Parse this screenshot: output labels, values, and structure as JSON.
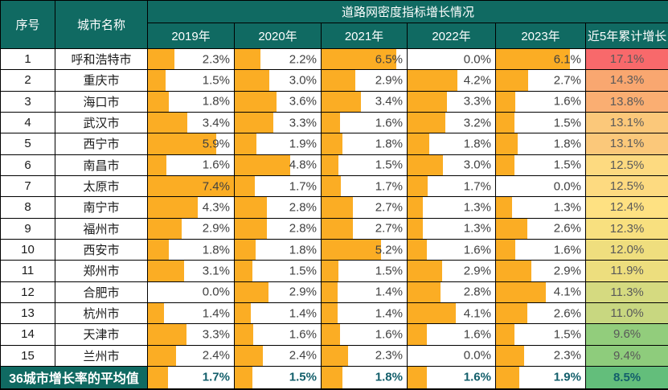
{
  "header": {
    "no": "序号",
    "city": "城市名称",
    "group": "道路网密度指标增长情况",
    "years": [
      "2019年",
      "2020年",
      "2021年",
      "2022年",
      "2023年"
    ],
    "cumulative": "近5年累计增长"
  },
  "colors": {
    "header_bg": "#106A62",
    "header_text": "#FFFFFF",
    "bar_fill": "#FBAD24",
    "value_text": "#404040",
    "cumulative_text": "#595959",
    "average_value_text": "#135F6B",
    "border": "#000000",
    "row_bg": "#FFFFFF"
  },
  "bar_scale_max": 7.4,
  "unit": "%",
  "chart_data": {
    "type": "table",
    "title": "道路网密度指标增长情况",
    "columns": [
      "序号",
      "城市名称",
      "2019年",
      "2020年",
      "2021年",
      "2022年",
      "2023年",
      "近5年累计增长"
    ],
    "value_format": "percent_one_decimal",
    "bar_scale_max": 7.4,
    "rows": [
      {
        "no": "1",
        "city": "呼和浩特市",
        "values": [
          2.3,
          2.2,
          6.5,
          0.0,
          6.1
        ],
        "cumulative": 17.1,
        "cumulative_bg": "#F8696B"
      },
      {
        "no": "2",
        "city": "重庆市",
        "values": [
          1.5,
          3.0,
          2.9,
          4.2,
          2.7
        ],
        "cumulative": 14.3,
        "cumulative_bg": "#F9A770"
      },
      {
        "no": "3",
        "city": "海口市",
        "values": [
          1.8,
          3.6,
          3.4,
          3.3,
          1.6
        ],
        "cumulative": 13.8,
        "cumulative_bg": "#FAAE72"
      },
      {
        "no": "4",
        "city": "武汉市",
        "values": [
          3.4,
          3.3,
          1.6,
          3.2,
          1.5
        ],
        "cumulative": 13.1,
        "cumulative_bg": "#FBC87A"
      },
      {
        "no": "5",
        "city": "西宁市",
        "values": [
          5.9,
          1.9,
          1.8,
          1.8,
          1.8
        ],
        "cumulative": 13.1,
        "cumulative_bg": "#FBC87A"
      },
      {
        "no": "6",
        "city": "南昌市",
        "values": [
          1.6,
          4.8,
          1.5,
          3.0,
          1.5
        ],
        "cumulative": 12.5,
        "cumulative_bg": "#FDDA80"
      },
      {
        "no": "7",
        "city": "太原市",
        "values": [
          7.4,
          1.7,
          1.7,
          1.7,
          0.0
        ],
        "cumulative": 12.5,
        "cumulative_bg": "#FDDA80"
      },
      {
        "no": "8",
        "city": "南宁市",
        "values": [
          4.3,
          2.8,
          2.7,
          1.3,
          1.3
        ],
        "cumulative": 12.4,
        "cumulative_bg": "#FEE182"
      },
      {
        "no": "9",
        "city": "福州市",
        "values": [
          2.9,
          2.8,
          2.7,
          1.3,
          2.6
        ],
        "cumulative": 12.3,
        "cumulative_bg": "#F8E07F"
      },
      {
        "no": "10",
        "city": "西安市",
        "values": [
          1.8,
          1.8,
          5.2,
          1.6,
          1.6
        ],
        "cumulative": 12.0,
        "cumulative_bg": "#EFDE7E"
      },
      {
        "no": "11",
        "city": "郑州市",
        "values": [
          3.1,
          1.5,
          1.5,
          2.9,
          2.9
        ],
        "cumulative": 11.9,
        "cumulative_bg": "#EDDE7E"
      },
      {
        "no": "12",
        "city": "合肥市",
        "values": [
          0.0,
          2.9,
          1.4,
          2.8,
          4.1
        ],
        "cumulative": 11.3,
        "cumulative_bg": "#D5DA80"
      },
      {
        "no": "13",
        "city": "杭州市",
        "values": [
          1.4,
          1.4,
          1.4,
          4.1,
          2.6
        ],
        "cumulative": 11.0,
        "cumulative_bg": "#C8D780"
      },
      {
        "no": "14",
        "city": "天津市",
        "values": [
          3.3,
          1.6,
          1.6,
          1.6,
          1.5
        ],
        "cumulative": 9.6,
        "cumulative_bg": "#92CD7C"
      },
      {
        "no": "15",
        "city": "兰州市",
        "values": [
          2.4,
          2.4,
          2.3,
          0.0,
          2.3
        ],
        "cumulative": 9.4,
        "cumulative_bg": "#8ECC7C"
      }
    ],
    "average_row": {
      "label": "36城市增长率的平均值",
      "values": [
        1.7,
        1.5,
        1.8,
        1.6,
        1.9
      ],
      "cumulative": 8.5,
      "cumulative_bg": "#63BE7B"
    }
  }
}
